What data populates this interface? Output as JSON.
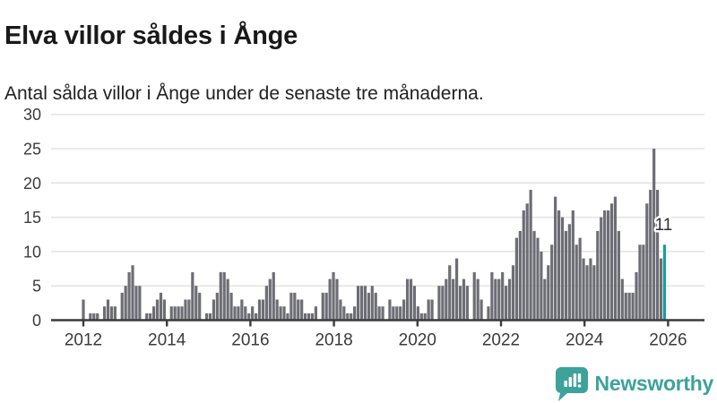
{
  "header": {
    "title": "Elva villor såldes i Ånge",
    "subtitle": "Antal sålda villor i Ånge under de senaste tre månaderna."
  },
  "chart_data": {
    "type": "bar",
    "title": "Elva villor såldes i Ånge",
    "x_start": "2012-01",
    "x_interval": "month",
    "series": [
      {
        "name": "Antal sålda villor, rullande tre månader",
        "values": [
          3,
          0,
          1,
          1,
          1,
          0,
          2,
          3,
          2,
          2,
          0,
          4,
          5,
          7,
          8,
          5,
          5,
          0,
          1,
          1,
          2,
          3,
          4,
          3,
          0,
          2,
          2,
          2,
          2,
          3,
          3,
          7,
          5,
          4,
          0,
          1,
          1,
          3,
          4,
          7,
          7,
          6,
          4,
          2,
          2,
          3,
          2,
          1,
          2,
          1,
          3,
          3,
          5,
          6,
          7,
          3,
          2,
          2,
          1,
          4,
          4,
          3,
          3,
          1,
          1,
          1,
          2,
          0,
          4,
          4,
          6,
          7,
          6,
          3,
          2,
          1,
          1,
          2,
          5,
          5,
          5,
          4,
          5,
          4,
          2,
          2,
          0,
          3,
          2,
          2,
          2,
          3,
          6,
          6,
          5,
          2,
          1,
          1,
          3,
          3,
          0,
          5,
          5,
          6,
          8,
          6,
          9,
          5,
          6,
          5,
          0,
          7,
          6,
          3,
          0,
          2,
          7,
          6,
          6,
          7,
          5,
          6,
          8,
          12,
          13,
          16,
          17,
          19,
          13,
          12,
          10,
          6,
          8,
          11,
          18,
          16,
          15,
          13,
          14,
          16,
          11,
          12,
          9,
          8,
          9,
          8,
          13,
          15,
          16,
          16,
          17,
          18,
          13,
          6,
          4,
          4,
          4,
          7,
          11,
          11,
          17,
          19,
          25,
          19,
          9,
          11
        ]
      }
    ],
    "highlight_last": {
      "value": 11,
      "label": "11"
    },
    "ylim": [
      0,
      30
    ],
    "yticks": [
      0,
      5,
      10,
      15,
      20,
      25,
      30
    ],
    "xticks": [
      "2012",
      "2014",
      "2016",
      "2018",
      "2020",
      "2022",
      "2024",
      "2026"
    ],
    "grid": true,
    "legend": "none",
    "colors": {
      "bar": "#6d6d75",
      "highlight": "#16a09a",
      "grid": "#e3e3e3",
      "axis": "#3b3b3b",
      "tick_text": "#3b3b3b",
      "annotation_text": "#2f2f2f"
    }
  },
  "footer": {
    "brand": "Newsworthy",
    "brand_color": "#3da29a"
  }
}
